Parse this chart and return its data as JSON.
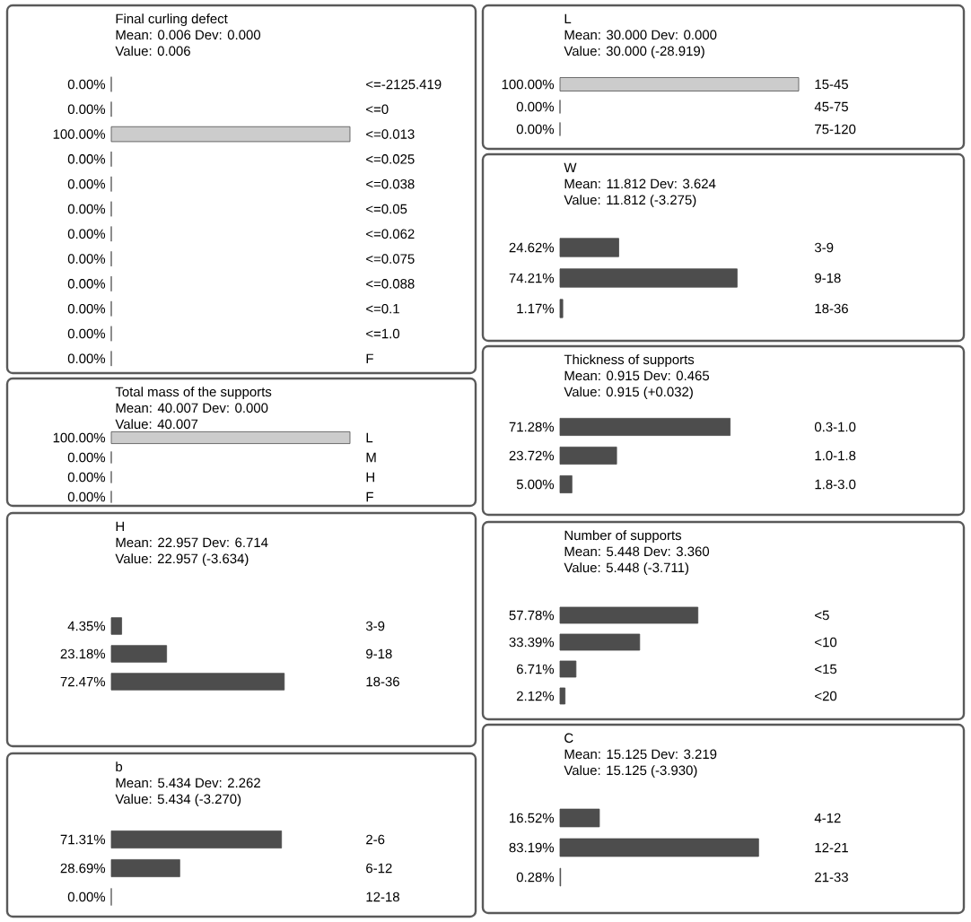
{
  "chart_data": [
    {
      "type": "bar",
      "orientation": "horizontal",
      "title": "Final curling defect",
      "subtitle": "Mean: 0.006 Dev: 0.000",
      "annotations": [
        "Value: 0.006"
      ],
      "categories": [
        "<=-2125.419",
        "<=0",
        "<=0.013",
        "<=0.025",
        "<=0.038",
        "<=0.05",
        "<=0.062",
        "<=0.075",
        "<=0.088",
        "<=0.1",
        "<=1.0",
        "F"
      ],
      "values": [
        0,
        0,
        100,
        0,
        0,
        0,
        0,
        0,
        0,
        0,
        0,
        0
      ],
      "value_labels": [
        "0.00%",
        "0.00%",
        "100.00%",
        "0.00%",
        "0.00%",
        "0.00%",
        "0.00%",
        "0.00%",
        "0.00%",
        "0.00%",
        "0.00%",
        "0.00%"
      ],
      "colors": [
        "#cccccc",
        "#cccccc",
        "#cccccc",
        "#cccccc",
        "#cccccc",
        "#cccccc",
        "#cccccc",
        "#cccccc",
        "#cccccc",
        "#cccccc",
        "#cccccc",
        "#cccccc"
      ]
    },
    {
      "type": "bar",
      "orientation": "horizontal",
      "title": "Total mass of the supports",
      "subtitle": "Mean: 40.007 Dev: 0.000",
      "annotations": [
        "Value: 40.007"
      ],
      "categories": [
        "L",
        "M",
        "H",
        "F"
      ],
      "values": [
        100,
        0,
        0,
        0
      ],
      "value_labels": [
        "100.00%",
        "0.00%",
        "0.00%",
        "0.00%"
      ],
      "colors": [
        "#cccccc",
        "#cccccc",
        "#cccccc",
        "#cccccc"
      ]
    },
    {
      "type": "bar",
      "orientation": "horizontal",
      "title": "H",
      "subtitle": "Mean: 22.957 Dev: 6.714",
      "annotations": [
        "Value: 22.957 (-3.634)"
      ],
      "categories": [
        "3-9",
        "9-18",
        "18-36"
      ],
      "values": [
        4.35,
        23.18,
        72.47
      ],
      "value_labels": [
        "4.35%",
        "23.18%",
        "72.47%"
      ],
      "colors": [
        "#4d4d4d",
        "#4d4d4d",
        "#4d4d4d"
      ]
    },
    {
      "type": "bar",
      "orientation": "horizontal",
      "title": "b",
      "subtitle": "Mean: 5.434 Dev: 2.262",
      "annotations": [
        "Value: 5.434 (-3.270)"
      ],
      "categories": [
        "2-6",
        "6-12",
        "12-18"
      ],
      "values": [
        71.31,
        28.69,
        0
      ],
      "value_labels": [
        "71.31%",
        "28.69%",
        "0.00%"
      ],
      "colors": [
        "#4d4d4d",
        "#4d4d4d",
        "#4d4d4d"
      ]
    },
    {
      "type": "bar",
      "orientation": "horizontal",
      "title": "L",
      "subtitle": "Mean: 30.000 Dev: 0.000",
      "annotations": [
        "Value: 30.000 (-28.919)"
      ],
      "categories": [
        "15-45",
        "45-75",
        "75-120"
      ],
      "values": [
        100,
        0,
        0
      ],
      "value_labels": [
        "100.00%",
        "0.00%",
        "0.00%"
      ],
      "colors": [
        "#cccccc",
        "#cccccc",
        "#cccccc"
      ]
    },
    {
      "type": "bar",
      "orientation": "horizontal",
      "title": "W",
      "subtitle": "Mean: 11.812 Dev: 3.624",
      "annotations": [
        "Value: 11.812 (-3.275)"
      ],
      "categories": [
        "3-9",
        "9-18",
        "18-36"
      ],
      "values": [
        24.62,
        74.21,
        1.17
      ],
      "value_labels": [
        "24.62%",
        "74.21%",
        "1.17%"
      ],
      "colors": [
        "#4d4d4d",
        "#4d4d4d",
        "#4d4d4d"
      ]
    },
    {
      "type": "bar",
      "orientation": "horizontal",
      "title": "Thickness of supports",
      "subtitle": "Mean: 0.915 Dev: 0.465",
      "annotations": [
        "Value: 0.915 (+0.032)"
      ],
      "categories": [
        "0.3-1.0",
        "1.0-1.8",
        "1.8-3.0"
      ],
      "values": [
        71.28,
        23.72,
        5.0
      ],
      "value_labels": [
        "71.28%",
        "23.72%",
        "5.00%"
      ],
      "colors": [
        "#4d4d4d",
        "#4d4d4d",
        "#4d4d4d"
      ]
    },
    {
      "type": "bar",
      "orientation": "horizontal",
      "title": "Number of supports",
      "subtitle": "Mean: 5.448 Dev: 3.360",
      "annotations": [
        "Value: 5.448 (-3.711)"
      ],
      "categories": [
        "<5",
        "<10",
        "<15",
        "<20"
      ],
      "values": [
        57.78,
        33.39,
        6.71,
        2.12
      ],
      "value_labels": [
        "57.78%",
        "33.39%",
        "6.71%",
        "2.12%"
      ],
      "colors": [
        "#4d4d4d",
        "#4d4d4d",
        "#4d4d4d",
        "#4d4d4d"
      ]
    },
    {
      "type": "bar",
      "orientation": "horizontal",
      "title": "C",
      "subtitle": "Mean: 15.125 Dev: 3.219",
      "annotations": [
        "Value: 15.125 (-3.930)"
      ],
      "categories": [
        "4-12",
        "12-21",
        "21-33"
      ],
      "values": [
        16.52,
        83.19,
        0.28
      ],
      "value_labels": [
        "16.52%",
        "83.19%",
        "0.28%"
      ],
      "colors": [
        "#4d4d4d",
        "#4d4d4d",
        "#4d4d4d"
      ]
    }
  ]
}
